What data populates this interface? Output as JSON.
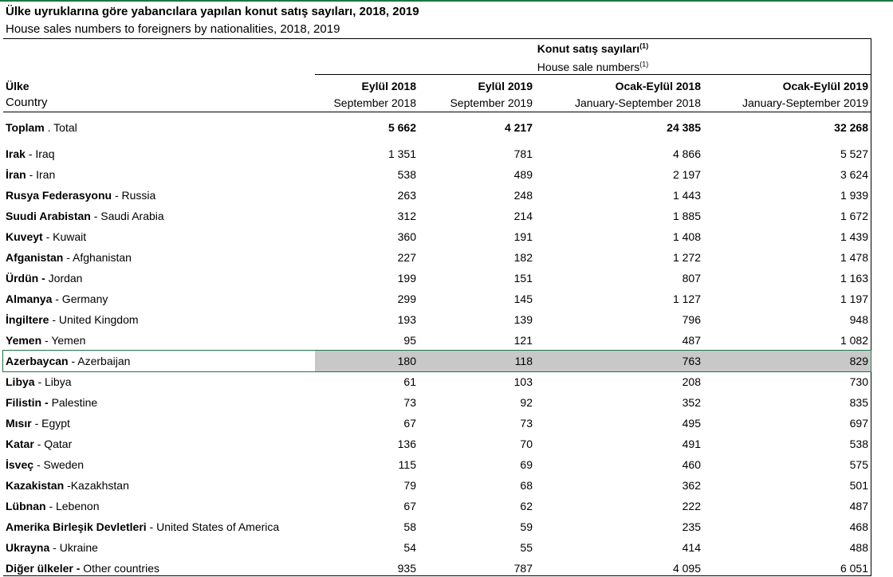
{
  "title": "Ülke uyruklarına göre yabancılara yapılan konut satış sayıları, 2018, 2019",
  "subtitle": "House sales numbers to foreigners by nationalities, 2018, 2019",
  "group_header": {
    "tr": "Konut satış sayıları",
    "tr_note": "(1)",
    "en": "House sale numbers",
    "en_note": "(1)"
  },
  "columns": [
    {
      "tr": "Ülke",
      "en": "Country"
    },
    {
      "tr": "Eylül 2018",
      "en": "September 2018"
    },
    {
      "tr": "Eylül 2019",
      "en": "September 2019"
    },
    {
      "tr": "Ocak-Eylül 2018",
      "en": "January-September 2018"
    },
    {
      "tr": "Ocak-Eylül 2019",
      "en": "January-September 2019"
    }
  ],
  "total": {
    "tr": "Toplam",
    "en": ". Total",
    "values": [
      "5 662",
      "4 217",
      "24 385",
      "32 268"
    ]
  },
  "rows": [
    {
      "tr": "Irak",
      "en": "- Iraq",
      "values": [
        "1 351",
        "781",
        "4 866",
        "5 527"
      ]
    },
    {
      "tr": "İran",
      "en": "- Iran",
      "values": [
        "538",
        "489",
        "2 197",
        "3 624"
      ]
    },
    {
      "tr": "Rusya Federasyonu",
      "en": "- Russia",
      "values": [
        "263",
        "248",
        "1 443",
        "1 939"
      ]
    },
    {
      "tr": "Suudi Arabistan",
      "en": "- Saudi Arabia",
      "values": [
        "312",
        "214",
        "1 885",
        "1 672"
      ]
    },
    {
      "tr": "Kuveyt",
      "en": "- Kuwait",
      "values": [
        "360",
        "191",
        "1 408",
        "1 439"
      ]
    },
    {
      "tr": "Afganistan",
      "en": "- Afghanistan",
      "values": [
        "227",
        "182",
        "1 272",
        "1 478"
      ]
    },
    {
      "tr": "Ürdün -",
      "en": "Jordan",
      "values": [
        "199",
        "151",
        "807",
        "1 163"
      ]
    },
    {
      "tr": "Almanya",
      "en": "- Germany",
      "values": [
        "299",
        "145",
        "1 127",
        "1 197"
      ]
    },
    {
      "tr": "İngiltere",
      "en": "- United Kingdom",
      "values": [
        "193",
        "139",
        "796",
        "948"
      ]
    },
    {
      "tr": "Yemen",
      "en": "- Yemen",
      "values": [
        "95",
        "121",
        "487",
        "1 082"
      ]
    },
    {
      "tr": "Azerbaycan",
      "en": "- Azerbaijan",
      "values": [
        "180",
        "118",
        "763",
        "829"
      ],
      "highlighted": true
    },
    {
      "tr": "Libya",
      "en": "- Libya",
      "values": [
        "61",
        "103",
        "208",
        "730"
      ]
    },
    {
      "tr": "Filistin -",
      "en": "Palestine",
      "values": [
        "73",
        "92",
        "352",
        "835"
      ]
    },
    {
      "tr": "Mısır",
      "en": "- Egypt",
      "values": [
        "67",
        "73",
        "495",
        "697"
      ]
    },
    {
      "tr": "Katar",
      "en": "- Qatar",
      "values": [
        "136",
        "70",
        "491",
        "538"
      ]
    },
    {
      "tr": "İsveç",
      "en": "- Sweden",
      "values": [
        "115",
        "69",
        "460",
        "575"
      ]
    },
    {
      "tr": "Kazakistan",
      "en": "-Kazakhstan",
      "values": [
        "79",
        "68",
        "362",
        "501"
      ]
    },
    {
      "tr": "Lübnan",
      "en": "- Lebenon",
      "values": [
        "67",
        "62",
        "222",
        "487"
      ]
    },
    {
      "tr": "Amerika Birleşik Devletleri",
      "en": "- United States of America",
      "values": [
        "58",
        "59",
        "235",
        "468"
      ]
    },
    {
      "tr": "Ukrayna",
      "en": "- Ukraine",
      "values": [
        "54",
        "55",
        "414",
        "488"
      ]
    },
    {
      "tr": "Diğer ülkeler -",
      "en": "Other countries",
      "values": [
        "935",
        "787",
        "4 095",
        "6 051"
      ]
    }
  ]
}
